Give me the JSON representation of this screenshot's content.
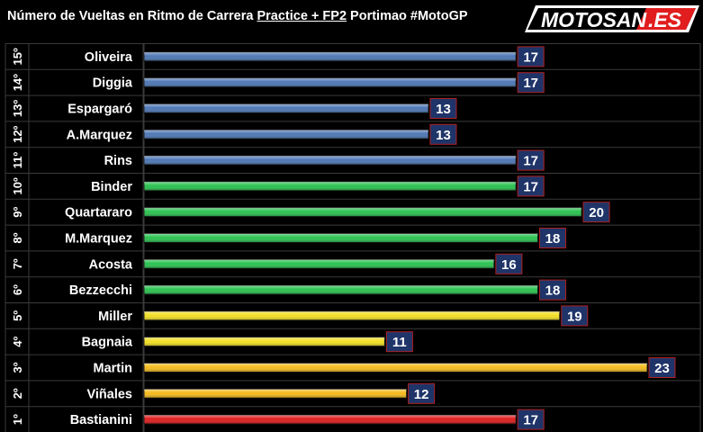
{
  "header": {
    "title_prefix": "Número de Vueltas en Ritmo de Carrera ",
    "title_underlined": "Practice + FP2",
    "title_suffix": "  Portimao #MotoGP"
  },
  "logo": {
    "text_main": "MOTOSAN",
    "text_tld": ".ES"
  },
  "colors": {
    "blue": "#4d77b5",
    "green": "#29c24f",
    "yellow": "#f2df22",
    "orange_yellow": "#f4bb1c",
    "red": "#e01d1d",
    "label_box": "#1f3468",
    "label_border": "#b02020"
  },
  "chart_data": {
    "type": "bar",
    "orientation": "horizontal",
    "title": "Número de Vueltas en Ritmo de Carrera Practice + FP2  Portimao #MotoGP",
    "xlim": [
      0,
      23
    ],
    "grid": true,
    "rows": [
      {
        "position": "15º",
        "rider": "Oliveira",
        "value": 17,
        "color": "blue"
      },
      {
        "position": "14º",
        "rider": "Diggia",
        "value": 17,
        "color": "blue"
      },
      {
        "position": "13º",
        "rider": "Espargaró",
        "value": 13,
        "color": "blue"
      },
      {
        "position": "12º",
        "rider": "A.Marquez",
        "value": 13,
        "color": "blue"
      },
      {
        "position": "11º",
        "rider": "Rins",
        "value": 17,
        "color": "blue"
      },
      {
        "position": "10º",
        "rider": "Binder",
        "value": 17,
        "color": "green"
      },
      {
        "position": "9º",
        "rider": "Quartararo",
        "value": 20,
        "color": "green"
      },
      {
        "position": "8º",
        "rider": "M.Marquez",
        "value": 18,
        "color": "green"
      },
      {
        "position": "7º",
        "rider": "Acosta",
        "value": 16,
        "color": "green"
      },
      {
        "position": "6º",
        "rider": "Bezzecchi",
        "value": 18,
        "color": "green"
      },
      {
        "position": "5º",
        "rider": "Miller",
        "value": 19,
        "color": "yellow"
      },
      {
        "position": "4º",
        "rider": "Bagnaia",
        "value": 11,
        "color": "yellow"
      },
      {
        "position": "3º",
        "rider": "Martin",
        "value": 23,
        "color": "orange_yellow"
      },
      {
        "position": "2º",
        "rider": "Viñales",
        "value": 12,
        "color": "orange_yellow"
      },
      {
        "position": "1º",
        "rider": "Bastianini",
        "value": 17,
        "color": "red"
      }
    ]
  }
}
